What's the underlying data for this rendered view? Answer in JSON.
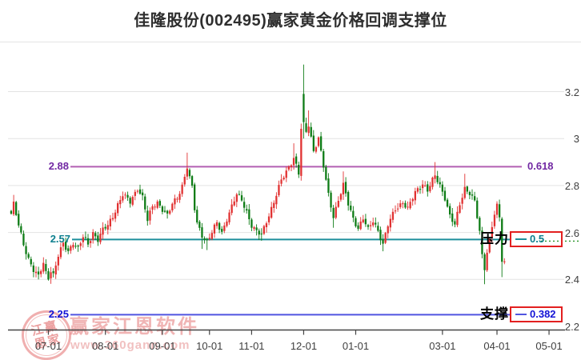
{
  "page": {
    "title": "佳隆股份(002495)赢家黄金价格回调支撑位"
  },
  "watermark": {
    "brand": "赢家江恩软件",
    "site": "www.360gann.com",
    "seal_rows": [
      "江赢",
      "恩家"
    ]
  },
  "chart_data": {
    "type": "candlestick",
    "stock_name": "佳隆股份",
    "stock_code": "002495",
    "title": "佳隆股份(002495)赢家黄金价格回调支撑位",
    "grid": true,
    "legend": null,
    "price_axis": {
      "side": "right",
      "range": [
        2.2,
        3.35
      ],
      "ticks": [
        {
          "label": "3.2",
          "value": 3.2
        },
        {
          "label": "3",
          "value": 3.0
        },
        {
          "label": "2.8",
          "value": 2.8
        },
        {
          "label": "2.6",
          "value": 2.6
        },
        {
          "label": "2.4",
          "value": 2.4
        },
        {
          "label": "2.2",
          "value": 2.2
        }
      ]
    },
    "time_axis": {
      "ticks": [
        {
          "label": "07-01",
          "day": 15
        },
        {
          "label": "08-01",
          "day": 38
        },
        {
          "label": "09-01",
          "day": 61
        },
        {
          "label": "10-01",
          "day": 80
        },
        {
          "label": "11-01",
          "day": 97
        },
        {
          "label": "12-01",
          "day": 118
        },
        {
          "label": "01-01",
          "day": 139
        },
        {
          "label": "03-01",
          "day": 174
        },
        {
          "label": "04-01",
          "day": 196
        },
        {
          "label": "05-01",
          "day": 217
        }
      ]
    },
    "fib_levels": [
      {
        "ratio_label": "0.618",
        "price_label": "2.88",
        "price": 2.88,
        "line_color": "#b25fb2",
        "label_color": "#7229a3",
        "boxed": false,
        "annotation": null,
        "extension": null
      },
      {
        "ratio_label": "0.5",
        "price_label": "2.57",
        "price": 2.57,
        "line_color": "#1e8f9b",
        "label_color": "#0e7f8e",
        "boxed": true,
        "annotation": "压力",
        "extension": {
          "style": "dotted",
          "color": "#1e8f1e"
        }
      },
      {
        "ratio_label": "0.382",
        "price_label": "2.25",
        "price": 2.25,
        "line_color": "#5055e0",
        "label_color": "#1313d6",
        "boxed": true,
        "annotation": "支撑",
        "extension": null
      }
    ],
    "box_border_color": "#e32020",
    "candle_colors": {
      "up": "#e13232",
      "down": "#0e7c16"
    },
    "axis_color": "#444444",
    "gridline_color": "#e3e3e3",
    "sessions": 200,
    "close_keypoints": [
      [
        0,
        2.68
      ],
      [
        1,
        2.72
      ],
      [
        3,
        2.63
      ],
      [
        5,
        2.55
      ],
      [
        7,
        2.49
      ],
      [
        9,
        2.44
      ],
      [
        11,
        2.41
      ],
      [
        12,
        2.44
      ],
      [
        13,
        2.47
      ],
      [
        14,
        2.43
      ],
      [
        15,
        2.41
      ],
      [
        16,
        2.44
      ],
      [
        17,
        2.42
      ],
      [
        19,
        2.5
      ],
      [
        21,
        2.55
      ],
      [
        23,
        2.52
      ],
      [
        25,
        2.56
      ],
      [
        27,
        2.53
      ],
      [
        29,
        2.58
      ],
      [
        31,
        2.55
      ],
      [
        33,
        2.6
      ],
      [
        35,
        2.57
      ],
      [
        37,
        2.61
      ],
      [
        39,
        2.63
      ],
      [
        41,
        2.67
      ],
      [
        43,
        2.72
      ],
      [
        45,
        2.76
      ],
      [
        48,
        2.73
      ],
      [
        51,
        2.79
      ],
      [
        53,
        2.75
      ],
      [
        55,
        2.65
      ],
      [
        57,
        2.71
      ],
      [
        59,
        2.73
      ],
      [
        61,
        2.7
      ],
      [
        63,
        2.67
      ],
      [
        65,
        2.72
      ],
      [
        67,
        2.75
      ],
      [
        69,
        2.8
      ],
      [
        71,
        2.88
      ],
      [
        72,
        2.83
      ],
      [
        73,
        2.79
      ],
      [
        74,
        2.7
      ],
      [
        75,
        2.64
      ],
      [
        77,
        2.59
      ],
      [
        79,
        2.56
      ],
      [
        81,
        2.6
      ],
      [
        83,
        2.64
      ],
      [
        85,
        2.6
      ],
      [
        87,
        2.66
      ],
      [
        89,
        2.71
      ],
      [
        91,
        2.76
      ],
      [
        93,
        2.74
      ],
      [
        95,
        2.69
      ],
      [
        97,
        2.63
      ],
      [
        99,
        2.6
      ],
      [
        101,
        2.59
      ],
      [
        103,
        2.65
      ],
      [
        106,
        2.73
      ],
      [
        109,
        2.82
      ],
      [
        112,
        2.88
      ],
      [
        114,
        2.92
      ],
      [
        116,
        2.85
      ],
      [
        117,
        3.04
      ],
      [
        118,
        3.07
      ],
      [
        119,
        3.03
      ],
      [
        120,
        3.06
      ],
      [
        122,
        2.95
      ],
      [
        124,
        3.0
      ],
      [
        126,
        2.88
      ],
      [
        128,
        2.76
      ],
      [
        130,
        2.67
      ],
      [
        132,
        2.74
      ],
      [
        134,
        2.8
      ],
      [
        136,
        2.72
      ],
      [
        138,
        2.66
      ],
      [
        140,
        2.62
      ],
      [
        142,
        2.66
      ],
      [
        144,
        2.61
      ],
      [
        146,
        2.65
      ],
      [
        148,
        2.61
      ],
      [
        150,
        2.55
      ],
      [
        152,
        2.63
      ],
      [
        155,
        2.7
      ],
      [
        158,
        2.73
      ],
      [
        160,
        2.7
      ],
      [
        163,
        2.77
      ],
      [
        166,
        2.81
      ],
      [
        168,
        2.78
      ],
      [
        171,
        2.84
      ],
      [
        173,
        2.8
      ],
      [
        175,
        2.75
      ],
      [
        177,
        2.67
      ],
      [
        179,
        2.63
      ],
      [
        181,
        2.72
      ],
      [
        183,
        2.79
      ],
      [
        185,
        2.77
      ],
      [
        187,
        2.73
      ],
      [
        189,
        2.6
      ],
      [
        190,
        2.5
      ],
      [
        191,
        2.45
      ],
      [
        192,
        2.52
      ],
      [
        193,
        2.57
      ],
      [
        194,
        2.63
      ],
      [
        195,
        2.68
      ],
      [
        196,
        2.71
      ],
      [
        197,
        2.66
      ],
      [
        198,
        2.48
      ],
      [
        199,
        2.47
      ]
    ],
    "special_candles": {
      "1": {
        "h": 2.76
      },
      "11": {
        "l": 2.4
      },
      "15": {
        "l": 2.395
      },
      "71": {
        "h": 2.94
      },
      "77": {
        "l": 2.53
      },
      "79": {
        "l": 2.525
      },
      "101": {
        "l": 2.565
      },
      "114": {
        "h": 2.98
      },
      "118": {
        "o": 3.19,
        "h": 3.315,
        "l": 3.0,
        "c": 3.07
      },
      "120": {
        "h": 3.12
      },
      "130": {
        "l": 2.62
      },
      "134": {
        "h": 2.86
      },
      "150": {
        "l": 2.52
      },
      "171": {
        "h": 2.9
      },
      "183": {
        "h": 2.85
      },
      "191": {
        "l": 2.38
      },
      "198": {
        "l": 2.41
      }
    }
  }
}
